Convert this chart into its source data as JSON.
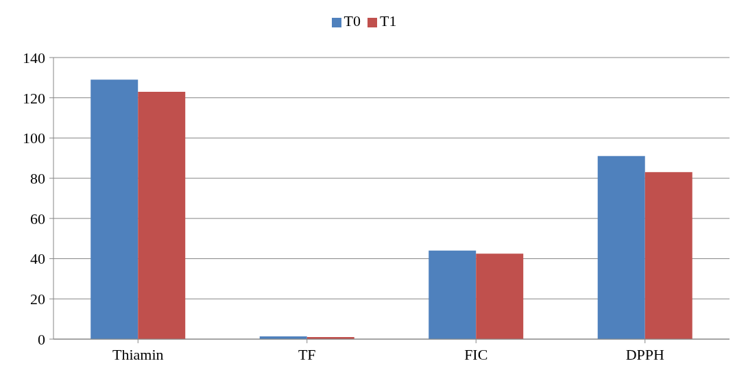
{
  "chart_data": {
    "type": "bar",
    "categories": [
      "Thiamin",
      "TF",
      "FIC",
      "DPPH"
    ],
    "series": [
      {
        "name": "T0",
        "color": "#4f81bd",
        "values": [
          129,
          1.4,
          44,
          91
        ]
      },
      {
        "name": "T1",
        "color": "#c0504d",
        "values": [
          123,
          1.0,
          42.5,
          83
        ]
      }
    ],
    "ylim": [
      0,
      140
    ],
    "yticks": [
      0,
      20,
      40,
      60,
      80,
      100,
      120,
      140
    ],
    "grid": "y",
    "legend": "top"
  }
}
